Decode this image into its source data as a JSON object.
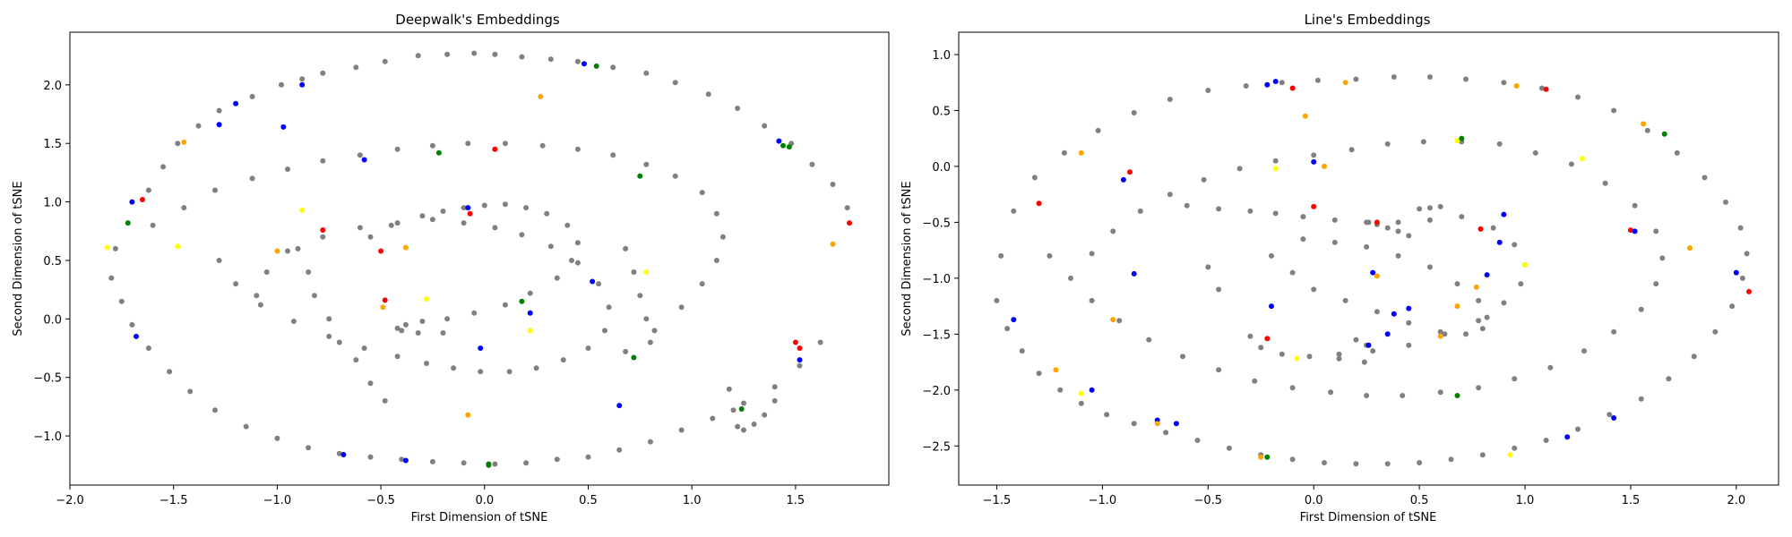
{
  "chart_data": [
    {
      "type": "scatter",
      "title": "Deepwalk's Embeddings",
      "xlabel": "First Dimension of tSNE",
      "ylabel": "Second Dimension of tSNE",
      "xlim": [
        -2.0,
        1.95
      ],
      "ylim": [
        -1.42,
        2.45
      ],
      "xticks": [
        -2.0,
        -1.5,
        -1.0,
        -0.5,
        0.0,
        0.5,
        1.0,
        1.5
      ],
      "yticks": [
        -1.0,
        -0.5,
        0.0,
        0.5,
        1.0,
        1.5,
        2.0
      ],
      "xtick_labels": [
        "−2.0",
        "−1.5",
        "−1.0",
        "−0.5",
        "0.0",
        "0.5",
        "1.0",
        "1.5"
      ],
      "ytick_labels": [
        "−1.0",
        "−0.5",
        "0.0",
        "0.5",
        "1.0",
        "1.5",
        "2.0"
      ],
      "grid": false,
      "series": [
        {
          "color": "#808080",
          "x": [
            -1.62,
            -1.55,
            -1.48,
            -1.38,
            -1.28,
            -1.12,
            -0.98,
            -0.88,
            -0.78,
            -0.62,
            -0.48,
            -0.32,
            -0.18,
            -0.05,
            0.05,
            0.18,
            0.32,
            0.45,
            0.62,
            0.78,
            0.92,
            1.08,
            1.22,
            1.35,
            1.48,
            1.58,
            1.68,
            1.75,
            -1.78,
            -1.8,
            -1.75,
            -1.7,
            -1.62,
            -1.52,
            -1.42,
            -1.3,
            -1.15,
            -1.0,
            -0.85,
            -0.7,
            -0.55,
            -0.4,
            -0.25,
            -0.1,
            0.05,
            0.2,
            0.35,
            0.5,
            0.65,
            0.8,
            0.95,
            1.1,
            1.25,
            1.4,
            1.52,
            1.62,
            -1.6,
            -1.45,
            -1.3,
            -1.12,
            -0.95,
            -0.78,
            -0.6,
            -0.42,
            -0.25,
            -0.08,
            0.1,
            0.28,
            0.45,
            0.62,
            0.78,
            0.92,
            1.05,
            1.12,
            1.15,
            1.12,
            1.05,
            0.95,
            0.82,
            0.68,
            -1.28,
            -1.2,
            -1.08,
            -0.92,
            -0.75,
            -0.58,
            -0.42,
            -0.28,
            -0.15,
            -0.02,
            0.12,
            0.25,
            0.38,
            0.5,
            0.58,
            0.6,
            0.55,
            0.45,
            0.32,
            0.18,
            0.05,
            -0.1,
            -0.25,
            -0.42,
            -0.6,
            -0.78,
            -0.95,
            -1.05,
            -1.1,
            -0.55,
            -0.45,
            -0.3,
            -0.2,
            -0.1,
            0.0,
            0.1,
            0.2,
            0.3,
            0.4,
            0.45,
            0.42,
            0.35,
            0.22,
            0.1,
            -0.05,
            -0.18,
            -0.3,
            -0.38,
            -0.42,
            -0.4,
            -0.32,
            -0.2,
            -0.9,
            -0.85,
            -0.82,
            -0.75,
            -0.7,
            -0.62,
            -0.55,
            -0.48,
            0.68,
            0.72,
            0.75,
            0.78,
            0.8,
            1.18,
            1.2,
            1.22,
            1.25,
            1.3,
            1.35,
            1.4
          ],
          "y": [
            1.1,
            1.3,
            1.5,
            1.65,
            1.78,
            1.9,
            2.0,
            2.05,
            2.1,
            2.15,
            2.2,
            2.25,
            2.26,
            2.27,
            2.26,
            2.24,
            2.22,
            2.2,
            2.15,
            2.1,
            2.02,
            1.92,
            1.8,
            1.65,
            1.5,
            1.32,
            1.15,
            0.95,
            0.6,
            0.35,
            0.15,
            -0.05,
            -0.25,
            -0.45,
            -0.62,
            -0.78,
            -0.92,
            -1.02,
            -1.1,
            -1.15,
            -1.18,
            -1.2,
            -1.22,
            -1.23,
            -1.24,
            -1.23,
            -1.2,
            -1.18,
            -1.12,
            -1.05,
            -0.95,
            -0.85,
            -0.72,
            -0.58,
            -0.4,
            -0.2,
            0.8,
            0.95,
            1.1,
            1.2,
            1.28,
            1.35,
            1.4,
            1.45,
            1.48,
            1.5,
            1.5,
            1.48,
            1.45,
            1.4,
            1.32,
            1.22,
            1.08,
            0.9,
            0.7,
            0.5,
            0.3,
            0.1,
            -0.1,
            -0.28,
            0.5,
            0.3,
            0.12,
            -0.02,
            -0.15,
            -0.25,
            -0.32,
            -0.38,
            -0.42,
            -0.45,
            -0.45,
            -0.42,
            -0.35,
            -0.25,
            -0.1,
            0.1,
            0.3,
            0.48,
            0.62,
            0.72,
            0.78,
            0.82,
            0.85,
            0.82,
            0.78,
            0.7,
            0.58,
            0.4,
            0.2,
            0.7,
            0.8,
            0.88,
            0.92,
            0.95,
            0.97,
            0.98,
            0.95,
            0.9,
            0.8,
            0.65,
            0.5,
            0.35,
            0.22,
            0.12,
            0.05,
            0.0,
            -0.02,
            -0.05,
            -0.08,
            -0.1,
            -0.12,
            -0.12,
            0.6,
            0.4,
            0.2,
            0.0,
            -0.2,
            -0.35,
            -0.55,
            -0.7,
            0.6,
            0.4,
            0.2,
            0.0,
            -0.2,
            -0.6,
            -0.78,
            -0.92,
            -0.95,
            -0.9,
            -0.82,
            -0.7
          ]
        },
        {
          "color": "#ff0000",
          "x": [
            -1.65,
            -0.78,
            -0.5,
            0.05,
            -0.48,
            -0.07,
            1.5,
            1.52,
            1.76
          ],
          "y": [
            1.02,
            0.76,
            0.58,
            1.45,
            0.16,
            0.9,
            -0.2,
            -0.25,
            0.82
          ]
        },
        {
          "color": "#0000ff",
          "x": [
            -1.7,
            -1.28,
            -0.97,
            -0.88,
            -1.2,
            -0.58,
            -0.08,
            0.52,
            0.22,
            -0.02,
            0.65,
            1.52,
            1.42,
            0.48,
            -0.68,
            -0.38,
            -1.68
          ],
          "y": [
            1.0,
            1.66,
            1.64,
            2.0,
            1.84,
            1.36,
            0.95,
            0.32,
            0.05,
            -0.25,
            -0.74,
            -0.35,
            1.52,
            2.18,
            -1.16,
            -1.21,
            -0.15
          ]
        },
        {
          "color": "#ffa500",
          "x": [
            -1.45,
            -1.0,
            -0.38,
            -0.49,
            0.27,
            -0.08,
            1.68
          ],
          "y": [
            1.51,
            0.58,
            0.61,
            0.1,
            1.9,
            -0.82,
            0.64
          ]
        },
        {
          "color": "#ffff00",
          "x": [
            -1.82,
            -1.48,
            -0.28,
            0.22,
            0.78,
            -0.88
          ],
          "y": [
            0.61,
            0.62,
            0.17,
            -0.1,
            0.4,
            0.93
          ]
        },
        {
          "color": "#008000",
          "x": [
            -1.72,
            -0.22,
            0.18,
            0.75,
            0.72,
            1.24,
            1.44,
            1.47,
            0.54,
            0.02,
            0.02
          ],
          "y": [
            0.82,
            1.42,
            0.15,
            1.22,
            -0.33,
            -0.77,
            1.48,
            1.47,
            2.16,
            -1.24,
            -1.25
          ]
        }
      ]
    },
    {
      "type": "scatter",
      "title": "Line's Embeddings",
      "xlabel": "First Dimension of tSNE",
      "ylabel": "Second Dimension of tSNE",
      "xlim": [
        -1.68,
        2.2
      ],
      "ylim": [
        -2.85,
        1.2
      ],
      "xticks": [
        -1.5,
        -1.0,
        -0.5,
        0.0,
        0.5,
        1.0,
        1.5,
        2.0
      ],
      "yticks": [
        -2.5,
        -2.0,
        -1.5,
        -1.0,
        -0.5,
        0.0,
        0.5,
        1.0
      ],
      "xtick_labels": [
        "−1.5",
        "−1.0",
        "−0.5",
        "0.0",
        "0.5",
        "1.0",
        "1.5",
        "2.0"
      ],
      "ytick_labels": [
        "−2.5",
        "−2.0",
        "−1.5",
        "−1.0",
        "−0.5",
        "0.0",
        "0.5",
        "1.0"
      ],
      "grid": false,
      "series": [
        {
          "color": "#808080",
          "x": [
            -1.5,
            -1.45,
            -1.38,
            -1.3,
            -1.2,
            -1.1,
            -0.98,
            -0.85,
            -0.7,
            -0.55,
            -0.4,
            -0.25,
            -0.1,
            0.05,
            0.2,
            0.35,
            0.5,
            0.65,
            0.8,
            0.95,
            1.1,
            1.25,
            1.4,
            1.55,
            1.68,
            1.8,
            1.9,
            1.98,
            2.03,
            2.05,
            2.02,
            1.95,
            1.85,
            1.72,
            1.58,
            1.42,
            1.25,
            1.08,
            0.9,
            0.72,
            0.55,
            0.38,
            0.2,
            0.02,
            -0.15,
            -0.32,
            -0.5,
            -0.68,
            -0.85,
            -1.02,
            -1.18,
            -1.32,
            -1.42,
            -1.48,
            -1.25,
            -1.15,
            -1.05,
            -0.92,
            -0.78,
            -0.62,
            -0.45,
            -0.28,
            -0.1,
            0.08,
            0.25,
            0.42,
            0.6,
            0.78,
            0.95,
            1.12,
            1.28,
            1.42,
            1.55,
            1.62,
            1.65,
            1.62,
            1.52,
            1.38,
            1.22,
            1.05,
            0.88,
            0.7,
            0.52,
            0.35,
            0.18,
            0.0,
            -0.18,
            -0.35,
            -0.52,
            -0.68,
            -0.82,
            -0.95,
            -1.05,
            -0.6,
            -0.45,
            -0.3,
            -0.18,
            -0.05,
            0.1,
            0.25,
            0.4,
            0.55,
            0.7,
            0.85,
            0.95,
            1.0,
            0.98,
            0.9,
            0.78,
            0.62,
            0.45,
            0.28,
            0.12,
            -0.02,
            -0.15,
            -0.25,
            -0.3,
            -0.2,
            -0.1,
            0.0,
            0.15,
            0.3,
            0.45,
            0.6,
            0.72,
            0.8,
            0.82,
            0.78,
            0.68,
            0.55,
            0.4,
            0.25,
            0.1,
            -0.05,
            0.26,
            0.3,
            0.35,
            0.4,
            0.45,
            0.5,
            0.55,
            0.6,
            -0.5,
            -0.45,
            0.2,
            0.25,
            0.12,
            0.24
          ],
          "y": [
            -1.2,
            -1.45,
            -1.65,
            -1.85,
            -2.0,
            -2.12,
            -2.22,
            -2.3,
            -2.38,
            -2.45,
            -2.52,
            -2.58,
            -2.62,
            -2.65,
            -2.66,
            -2.66,
            -2.65,
            -2.62,
            -2.58,
            -2.52,
            -2.45,
            -2.35,
            -2.22,
            -2.08,
            -1.9,
            -1.7,
            -1.48,
            -1.25,
            -1.0,
            -0.78,
            -0.55,
            -0.32,
            -0.1,
            0.12,
            0.32,
            0.5,
            0.62,
            0.7,
            0.75,
            0.78,
            0.8,
            0.8,
            0.78,
            0.77,
            0.75,
            0.72,
            0.68,
            0.6,
            0.48,
            0.32,
            0.12,
            -0.1,
            -0.4,
            -0.8,
            -0.8,
            -1.0,
            -1.2,
            -1.38,
            -1.55,
            -1.7,
            -1.82,
            -1.92,
            -1.98,
            -2.02,
            -2.05,
            -2.05,
            -2.02,
            -1.98,
            -1.9,
            -1.8,
            -1.65,
            -1.48,
            -1.28,
            -1.05,
            -0.82,
            -0.58,
            -0.35,
            -0.15,
            0.02,
            0.12,
            0.2,
            0.22,
            0.22,
            0.2,
            0.15,
            0.1,
            0.05,
            -0.02,
            -0.12,
            -0.25,
            -0.4,
            -0.58,
            -0.78,
            -0.35,
            -0.38,
            -0.4,
            -0.42,
            -0.45,
            -0.48,
            -0.5,
            -0.5,
            -0.48,
            -0.45,
            -0.55,
            -0.7,
            -0.88,
            -1.05,
            -1.22,
            -1.38,
            -1.5,
            -1.6,
            -1.65,
            -1.68,
            -1.7,
            -1.68,
            -1.62,
            -1.52,
            -0.8,
            -0.95,
            -1.1,
            -1.2,
            -1.3,
            -1.4,
            -1.48,
            -1.5,
            -1.45,
            -1.35,
            -1.2,
            -1.05,
            -0.9,
            -0.8,
            -0.72,
            -0.68,
            -0.65,
            -0.5,
            -0.52,
            -0.55,
            -0.58,
            -0.62,
            -0.38,
            -0.37,
            -0.36,
            -0.9,
            -1.1,
            -1.55,
            -1.6,
            -1.72,
            -1.75
          ]
        },
        {
          "color": "#ff0000",
          "x": [
            -1.3,
            -0.87,
            -0.1,
            1.1,
            0.0,
            0.3,
            0.79,
            1.5,
            -0.22,
            2.06
          ],
          "y": [
            -0.33,
            -0.05,
            0.7,
            0.69,
            -0.36,
            -0.5,
            -0.56,
            -0.57,
            -1.54,
            -1.12
          ]
        },
        {
          "color": "#0000ff",
          "x": [
            -0.9,
            -0.18,
            -0.2,
            0.0,
            -0.85,
            -0.22,
            0.26,
            0.38,
            0.45,
            0.28,
            0.35,
            0.82,
            0.88,
            0.9,
            1.2,
            1.42,
            1.52,
            2.0,
            -1.42,
            -1.05,
            -0.65,
            -0.74
          ],
          "y": [
            -0.12,
            0.76,
            -1.25,
            0.04,
            -0.96,
            0.73,
            -1.6,
            -1.32,
            -1.27,
            -0.95,
            -1.5,
            -0.97,
            -0.68,
            -0.43,
            -2.42,
            -2.25,
            -0.58,
            -0.95,
            -1.37,
            -2.0,
            -2.3,
            -2.27
          ]
        },
        {
          "color": "#ffa500",
          "x": [
            -1.1,
            -0.04,
            0.15,
            0.05,
            0.68,
            0.96,
            1.56,
            0.3,
            0.6,
            0.68,
            0.77,
            1.78,
            -0.95,
            -1.22,
            -0.25,
            -0.74
          ],
          "y": [
            0.12,
            0.45,
            0.75,
            0.0,
            0.23,
            0.72,
            0.38,
            -0.98,
            -1.52,
            -1.25,
            -1.08,
            -0.73,
            -1.37,
            -1.82,
            -2.6,
            -2.3
          ]
        },
        {
          "color": "#ffff00",
          "x": [
            -0.18,
            1.27,
            1.0,
            -0.08,
            -1.1,
            0.93,
            0.68
          ],
          "y": [
            -0.02,
            0.07,
            -0.88,
            -1.72,
            -2.03,
            -2.58,
            0.23
          ]
        },
        {
          "color": "#008000",
          "x": [
            1.66,
            0.7,
            0.68,
            -0.22
          ],
          "y": [
            0.29,
            0.25,
            -2.05,
            -2.6
          ]
        }
      ]
    }
  ]
}
